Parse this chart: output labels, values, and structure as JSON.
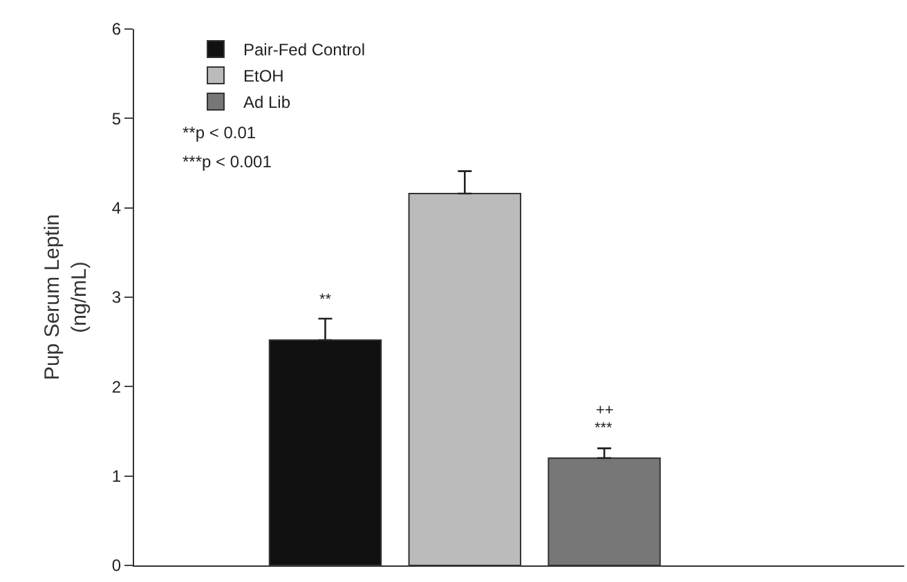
{
  "chart_data": {
    "type": "bar",
    "ylabel": "Pup Serum Leptin\n(ng/mL)",
    "categories": [
      null
    ],
    "series": [
      {
        "name": "Pair-Fed Control",
        "color": "#111111",
        "values": [
          2.52
        ],
        "errors": [
          0.24
        ],
        "value_labels": [
          "**"
        ]
      },
      {
        "name": "EtOH",
        "color": "#bbbbbb",
        "values": [
          4.16
        ],
        "errors": [
          0.25
        ]
      },
      {
        "name": "Ad Lib",
        "color": "#777777",
        "values": [
          1.2
        ],
        "errors": [
          0.11
        ],
        "value_labels": [
          "++\n***"
        ]
      }
    ],
    "ylim": [
      0,
      6
    ],
    "yticks": [
      0,
      1,
      2,
      3,
      4,
      5,
      6
    ],
    "grid": false,
    "legend": "top left",
    "annotations": [
      "**p < 0.01",
      "***p < 0.001"
    ]
  }
}
